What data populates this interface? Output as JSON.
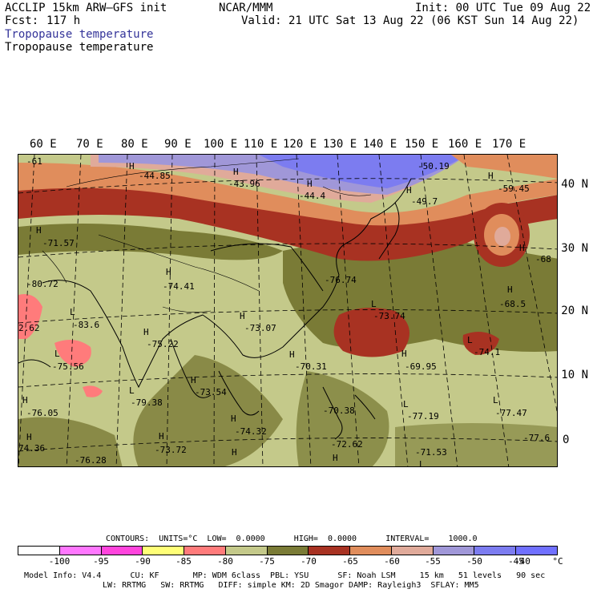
{
  "header": {
    "model": "ACCLIP 15km ARW–GFS init",
    "org": "NCAR/MMM",
    "init": "Init: 00 UTC Tue 09 Aug 22",
    "fcst_label": "Fcst:",
    "fcst_value": "117 h",
    "valid": "Valid: 21 UTC Sat 13 Aug 22 (06 KST Sun 14 Aug 22)",
    "field_title_1": "Tropopause temperature",
    "field_title_2": "Tropopause temperature"
  },
  "map": {
    "lon_labels": [
      "60 E",
      "70 E",
      "80 E",
      "90 E",
      "100 E",
      "110 E",
      "120 E",
      "130 E",
      "140 E",
      "150 E",
      "160 E",
      "170 E"
    ],
    "lat_labels": [
      "40 N",
      "30 N",
      "20 N",
      "10 N",
      "0"
    ],
    "colors": {
      "le_-100": "#ffffff",
      "-100_-95": "#ff77ff",
      "-95_-90": "#ff44dd",
      "-90_-85": "#ffff77",
      "-85_-80": "#ff7b7b",
      "-80_-75": "#c4c98a",
      "-75_-70": "#7a7b36",
      "-70_-65": "#a83222",
      "-65_-60": "#e08d5c",
      "-60_-55": "#e0aa9a",
      "-55_-50": "#a097d8",
      "-50_-45": "#7c7cf0",
      "-45_-40": "#7070ff"
    },
    "labels": [
      {
        "t": "-61"
      },
      {
        "t": "H"
      },
      {
        "t": "-44.85"
      },
      {
        "t": "H"
      },
      {
        "t": "-43.96"
      },
      {
        "t": "H"
      },
      {
        "t": "-44.4"
      },
      {
        "t": "-50.19"
      },
      {
        "t": "H"
      },
      {
        "t": "-49.7"
      },
      {
        "t": "H"
      },
      {
        "t": "-59.45"
      },
      {
        "t": "H"
      },
      {
        "t": "-68"
      },
      {
        "t": "H"
      },
      {
        "t": "-71.57"
      },
      {
        "t": "-80.72"
      },
      {
        "t": "H"
      },
      {
        "t": "-74.41"
      },
      {
        "t": "-76.74"
      },
      {
        "t": "L"
      },
      {
        "t": "-73.74"
      },
      {
        "t": "H"
      },
      {
        "t": "-68.5"
      },
      {
        "t": "2.62"
      },
      {
        "t": "L"
      },
      {
        "t": "-83.6"
      },
      {
        "t": "H"
      },
      {
        "t": "-75.22"
      },
      {
        "t": "H"
      },
      {
        "t": "-73.07"
      },
      {
        "t": "L"
      },
      {
        "t": "-74.1"
      },
      {
        "t": "L"
      },
      {
        "t": "-75.56"
      },
      {
        "t": "H"
      },
      {
        "t": "-70.31"
      },
      {
        "t": "H"
      },
      {
        "t": "-69.95"
      },
      {
        "t": "L"
      },
      {
        "t": "-79.38"
      },
      {
        "t": "H"
      },
      {
        "t": "-73.54"
      },
      {
        "t": "H"
      },
      {
        "t": "-76.05"
      },
      {
        "t": "-70.38"
      },
      {
        "t": "L"
      },
      {
        "t": "-77.19"
      },
      {
        "t": "L"
      },
      {
        "t": "-77.47"
      },
      {
        "t": "H"
      },
      {
        "t": "-74.32"
      },
      {
        "t": "H"
      },
      {
        "t": "74.36"
      },
      {
        "t": "-76.28"
      },
      {
        "t": "H"
      },
      {
        "t": "-73.72"
      },
      {
        "t": "H"
      },
      {
        "t": "-72.62"
      },
      {
        "t": "H"
      },
      {
        "t": "-71.53"
      },
      {
        "t": "L"
      },
      {
        "t": "-77.6"
      }
    ]
  },
  "legend_info": {
    "contours": "CONTOURS:  UNITS=°C  LOW=  0.0000      HIGH=  0.0000      INTERVAL=    1000.0"
  },
  "colorbar": {
    "ticks": [
      "-100",
      "-95",
      "-90",
      "-85",
      "-80",
      "-75",
      "-70",
      "-65",
      "-60",
      "-55",
      "-50",
      "-45",
      "-40",
      "°C"
    ]
  },
  "footer": {
    "line1": "Model Info: V4.4      CU: KF       MP: WDM 6class  PBL: YSU      SF: Noah LSM     15 km   51 levels   90 sec",
    "line2": "LW: RRTMG   SW: RRTMG   DIFF: simple KM: 2D Smagor DAMP: Rayleigh3  SFLAY: MM5"
  }
}
